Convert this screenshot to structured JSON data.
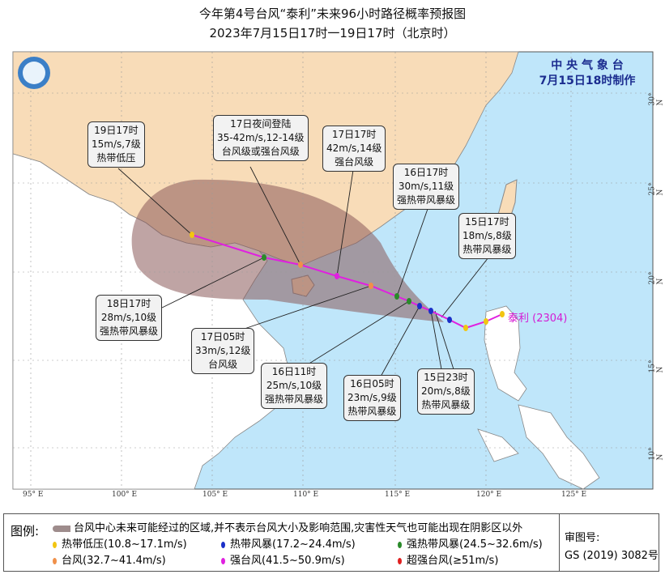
{
  "title": {
    "line1": "今年第4号台风“泰利”未来96小时路径概率预报图",
    "line2": "2023年7月15日17时一19日17时（北京时）"
  },
  "issuer": {
    "name": "中 央 气 象 台",
    "time": "7月15日18时制作"
  },
  "typhoon_name": "泰利 (2304)",
  "axes": {
    "lon_ticks": [
      "95° E",
      "100° E",
      "105° E",
      "110° E",
      "115° E",
      "120° E",
      "125° E"
    ],
    "lat_ticks": [
      "30° N",
      "25° N",
      "20° N",
      "15° N",
      "10° N"
    ]
  },
  "forecast_labels": [
    {
      "time": "19日17时",
      "wind": "15m/s,7级",
      "level": "热带低压"
    },
    {
      "time": "17日夜间登陆",
      "wind": "35-42m/s,12-14级",
      "level": "台风级或强台风级"
    },
    {
      "time": "17日17时",
      "wind": "42m/s,14级",
      "level": "强台风级"
    },
    {
      "time": "16日17时",
      "wind": "30m/s,11级",
      "level": "强热带风暴级"
    },
    {
      "time": "15日17时",
      "wind": "18m/s,8级",
      "level": "热带风暴级"
    },
    {
      "time": "18日17时",
      "wind": "28m/s,10级",
      "level": "强热带风暴级"
    },
    {
      "time": "17日05时",
      "wind": "33m/s,12级",
      "level": "台风级"
    },
    {
      "time": "16日11时",
      "wind": "25m/s,10级",
      "level": "强热带风暴级"
    },
    {
      "time": "16日05时",
      "wind": "23m/s,9级",
      "level": "热带风暴级"
    },
    {
      "time": "15日23时",
      "wind": "20m/s,8级",
      "level": "热带风暴级"
    }
  ],
  "legend": {
    "title": "图例:",
    "cone_text": "台风中心未来可能经过的区域,并不表示台风大小及影响范围,灾害性天气也可能出现在阴影区以外",
    "items": [
      {
        "label": "热带低压(10.8~17.1m/s)",
        "color": "#f2c511"
      },
      {
        "label": "热带风暴(17.2~24.4m/s)",
        "color": "#1a2fc8"
      },
      {
        "label": "强热带风暴(24.5~32.6m/s)",
        "color": "#2a8a2a"
      },
      {
        "label": "台风(32.7~41.4m/s)",
        "color": "#f0904a"
      },
      {
        "label": "强台风(41.5~50.9m/s)",
        "color": "#e020e0"
      },
      {
        "label": "超强台风(≥51m/s)",
        "color": "#e02020"
      }
    ]
  },
  "approval": {
    "label": "审图号:",
    "number": "GS (2019) 3082号"
  }
}
